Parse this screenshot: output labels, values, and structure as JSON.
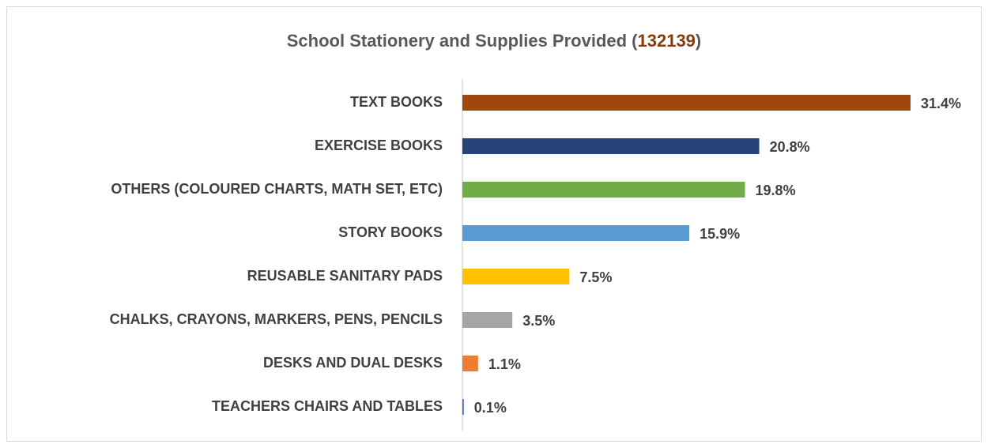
{
  "chart_data": {
    "type": "bar",
    "orientation": "horizontal",
    "title_parts": [
      "School Stationery and Supplies Provided (",
      "132139",
      ")"
    ],
    "title_part_colors": [
      "#595959",
      "#843c0c",
      "#595959"
    ],
    "categories": [
      "TEXT BOOKS",
      "EXERCISE BOOKS",
      "OTHERS (COLOURED CHARTS, MATH SET, ETC)",
      "STORY BOOKS",
      "REUSABLE SANITARY PADS",
      "CHALKS, CRAYONS, MARKERS, PENS, PENCILS",
      "DESKS AND DUAL DESKS",
      "TEACHERS CHAIRS AND TABLES"
    ],
    "values": [
      31.4,
      20.8,
      19.8,
      15.9,
      7.5,
      3.5,
      1.1,
      0.1
    ],
    "value_labels": [
      "31.4%",
      "20.8%",
      "19.8%",
      "15.9%",
      "7.5%",
      "3.5%",
      "1.1%",
      "0.1%"
    ],
    "colors": [
      "#9e480e",
      "#264478",
      "#70ad47",
      "#5b9bd5",
      "#ffc000",
      "#a5a5a5",
      "#ed7d31",
      "#4472c4"
    ],
    "xlim": [
      0,
      35
    ]
  }
}
